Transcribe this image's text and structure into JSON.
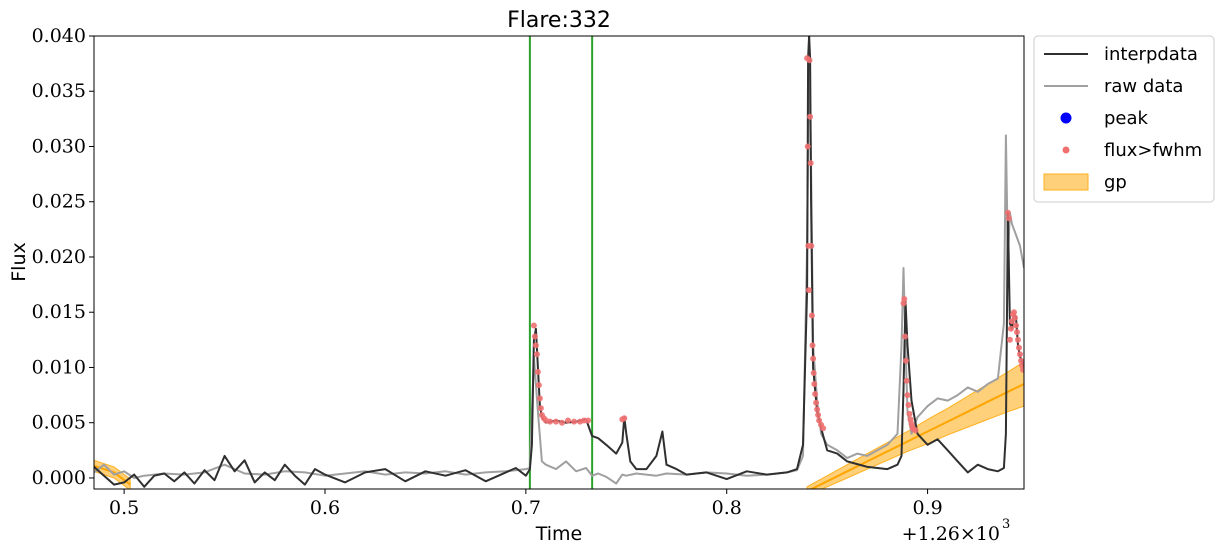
{
  "chart_data": {
    "type": "line",
    "title": "Flare:332",
    "xlabel": "Time",
    "ylabel": "Flux",
    "x_offset_label": "+1.26×10",
    "x_offset_exp": "3",
    "xlim": [
      0.485,
      0.948
    ],
    "ylim": [
      -0.001,
      0.04
    ],
    "xticks": [
      {
        "value": 0.5,
        "label": "0.5"
      },
      {
        "value": 0.6,
        "label": "0.6"
      },
      {
        "value": 0.7,
        "label": "0.7"
      },
      {
        "value": 0.8,
        "label": "0.8"
      },
      {
        "value": 0.9,
        "label": "0.9"
      }
    ],
    "yticks": [
      {
        "value": 0.0,
        "label": "0.000"
      },
      {
        "value": 0.005,
        "label": "0.005"
      },
      {
        "value": 0.01,
        "label": "0.010"
      },
      {
        "value": 0.015,
        "label": "0.015"
      },
      {
        "value": 0.02,
        "label": "0.020"
      },
      {
        "value": 0.025,
        "label": "0.025"
      },
      {
        "value": 0.03,
        "label": "0.030"
      },
      {
        "value": 0.035,
        "label": "0.035"
      },
      {
        "value": 0.04,
        "label": "0.040"
      }
    ],
    "vlines": [
      {
        "x": 0.702,
        "color": "#2ca02c"
      },
      {
        "x": 0.733,
        "color": "#2ca02c"
      }
    ],
    "legend": {
      "placement": "outside-upper-right",
      "entries": [
        {
          "label": "interpdata",
          "kind": "line",
          "color": "#303030"
        },
        {
          "label": "raw data",
          "kind": "line",
          "color": "#a0a0a0"
        },
        {
          "label": "peak",
          "kind": "dot",
          "color": "#0000ff"
        },
        {
          "label": "flux>fwhm",
          "kind": "dot",
          "color": "#f07070"
        },
        {
          "label": "gp",
          "kind": "band",
          "color": "#ffc04d"
        }
      ]
    },
    "series": [
      {
        "name": "raw data",
        "color": "#a0a0a0",
        "x": [
          0.485,
          0.49,
          0.495,
          0.5,
          0.505,
          0.51,
          0.52,
          0.53,
          0.54,
          0.55,
          0.56,
          0.57,
          0.58,
          0.59,
          0.6,
          0.61,
          0.62,
          0.63,
          0.64,
          0.65,
          0.66,
          0.67,
          0.68,
          0.69,
          0.7,
          0.702,
          0.704,
          0.706,
          0.708,
          0.71,
          0.715,
          0.72,
          0.725,
          0.73,
          0.733,
          0.736,
          0.74,
          0.745,
          0.748,
          0.75,
          0.755,
          0.76,
          0.765,
          0.77,
          0.78,
          0.79,
          0.8,
          0.81,
          0.82,
          0.83,
          0.835,
          0.838,
          0.84,
          0.841,
          0.842,
          0.843,
          0.845,
          0.847,
          0.85,
          0.855,
          0.86,
          0.865,
          0.87,
          0.875,
          0.88,
          0.885,
          0.887,
          0.888,
          0.889,
          0.89,
          0.892,
          0.895,
          0.9,
          0.905,
          0.91,
          0.915,
          0.92,
          0.925,
          0.93,
          0.935,
          0.938,
          0.939,
          0.94,
          0.941,
          0.942,
          0.944,
          0.946,
          0.948
        ],
        "y": [
          0.0005,
          0.0012,
          0.0003,
          0.0006,
          0.0,
          0.0002,
          0.0004,
          0.0003,
          0.0005,
          0.0012,
          0.0004,
          0.0003,
          0.0006,
          0.0005,
          0.0002,
          0.0004,
          0.0006,
          0.0003,
          0.0005,
          0.0004,
          0.0006,
          0.0003,
          0.0005,
          0.0006,
          0.0008,
          0.0009,
          0.011,
          0.006,
          0.0015,
          0.0012,
          0.0008,
          0.0015,
          0.0006,
          0.0009,
          0.0002,
          0.0004,
          0.0001,
          -0.0005,
          0.0003,
          0.0002,
          0.0004,
          0.0003,
          0.0002,
          0.0004,
          0.0003,
          0.0005,
          0.0004,
          0.0002,
          0.0003,
          0.0005,
          0.0007,
          0.002,
          0.021,
          0.04,
          0.028,
          0.012,
          0.007,
          0.004,
          0.003,
          0.0025,
          0.0018,
          0.0022,
          0.002,
          0.0025,
          0.003,
          0.004,
          0.012,
          0.019,
          0.012,
          0.006,
          0.004,
          0.0055,
          0.0065,
          0.0072,
          0.007,
          0.0075,
          0.0082,
          0.0078,
          0.0085,
          0.009,
          0.014,
          0.031,
          0.02,
          0.024,
          0.023,
          0.022,
          0.021,
          0.019
        ]
      },
      {
        "name": "interpdata",
        "color": "#303030",
        "x": [
          0.485,
          0.49,
          0.495,
          0.5,
          0.505,
          0.51,
          0.515,
          0.52,
          0.525,
          0.53,
          0.535,
          0.54,
          0.545,
          0.55,
          0.555,
          0.56,
          0.565,
          0.57,
          0.575,
          0.58,
          0.585,
          0.59,
          0.595,
          0.6,
          0.61,
          0.62,
          0.63,
          0.64,
          0.65,
          0.66,
          0.67,
          0.68,
          0.69,
          0.695,
          0.7,
          0.702,
          0.703,
          0.704,
          0.705,
          0.706,
          0.707,
          0.708,
          0.71,
          0.715,
          0.72,
          0.725,
          0.73,
          0.733,
          0.736,
          0.74,
          0.745,
          0.748,
          0.749,
          0.75,
          0.752,
          0.755,
          0.76,
          0.765,
          0.768,
          0.77,
          0.775,
          0.78,
          0.79,
          0.8,
          0.81,
          0.82,
          0.83,
          0.835,
          0.838,
          0.84,
          0.8405,
          0.841,
          0.8415,
          0.842,
          0.843,
          0.845,
          0.847,
          0.85,
          0.855,
          0.86,
          0.87,
          0.88,
          0.885,
          0.887,
          0.888,
          0.889,
          0.89,
          0.892,
          0.895,
          0.9,
          0.905,
          0.91,
          0.915,
          0.92,
          0.925,
          0.93,
          0.935,
          0.938,
          0.939,
          0.94,
          0.941,
          0.942,
          0.943,
          0.944,
          0.945,
          0.946,
          0.948
        ],
        "y": [
          0.001,
          0.0002,
          -0.0006,
          -0.0004,
          0.0003,
          -0.0008,
          0.0002,
          0.0004,
          -0.0003,
          0.0005,
          -0.0005,
          0.0007,
          -0.0002,
          0.002,
          0.0006,
          0.0016,
          -0.0004,
          0.0005,
          -0.0002,
          0.0012,
          0.0002,
          -0.0006,
          0.0008,
          0.0003,
          -0.0004,
          0.0005,
          0.0008,
          -0.0003,
          0.0006,
          0.0002,
          0.0007,
          -0.0003,
          0.0005,
          0.0009,
          0.0002,
          0.0008,
          0.003,
          0.0125,
          0.0135,
          0.01,
          0.0065,
          0.0055,
          0.005,
          0.0052,
          0.005,
          0.0051,
          0.0053,
          0.0038,
          0.0036,
          0.003,
          0.0022,
          0.0032,
          0.0055,
          0.004,
          0.0015,
          0.0008,
          0.0008,
          0.002,
          0.0042,
          0.0012,
          0.0008,
          0.0003,
          0.0005,
          -0.0001,
          0.0006,
          0.0003,
          0.0005,
          0.0008,
          0.003,
          0.017,
          0.038,
          0.04,
          0.038,
          0.025,
          0.01,
          0.006,
          0.0045,
          0.0025,
          0.0022,
          0.0015,
          0.001,
          0.0008,
          0.0012,
          0.002,
          0.008,
          0.016,
          0.012,
          0.007,
          0.004,
          0.003,
          0.0035,
          0.0025,
          0.0015,
          0.0005,
          0.0012,
          0.0008,
          0.0006,
          0.0009,
          0.004,
          0.024,
          0.014,
          0.0135,
          0.015,
          0.0145,
          0.012,
          0.011,
          0.01
        ]
      },
      {
        "name": "flux>fwhm",
        "color": "#f07070",
        "x": [
          0.704,
          0.7045,
          0.705,
          0.7055,
          0.706,
          0.7065,
          0.707,
          0.7075,
          0.708,
          0.709,
          0.71,
          0.712,
          0.715,
          0.718,
          0.721,
          0.724,
          0.727,
          0.729,
          0.731,
          0.748,
          0.749,
          0.84,
          0.8403,
          0.8406,
          0.8409,
          0.8412,
          0.8415,
          0.8418,
          0.8421,
          0.8424,
          0.8427,
          0.843,
          0.8433,
          0.8436,
          0.844,
          0.8445,
          0.845,
          0.8455,
          0.846,
          0.847,
          0.848,
          0.888,
          0.8884,
          0.8888,
          0.8892,
          0.8896,
          0.89,
          0.8905,
          0.891,
          0.8915,
          0.892,
          0.8925,
          0.893,
          0.894,
          0.94,
          0.9405,
          0.941,
          0.9415,
          0.942,
          0.9425,
          0.943,
          0.9435,
          0.944,
          0.9445,
          0.945,
          0.9455,
          0.946,
          0.9465,
          0.947,
          0.9475
        ],
        "y": [
          0.0138,
          0.0128,
          0.012,
          0.0112,
          0.0096,
          0.0084,
          0.0072,
          0.0063,
          0.0057,
          0.0054,
          0.0052,
          0.0051,
          0.0051,
          0.005,
          0.0052,
          0.0051,
          0.0051,
          0.0052,
          0.0052,
          0.0053,
          0.0054,
          0.038,
          0.03,
          0.021,
          0.017,
          0.0378,
          0.0327,
          0.0285,
          0.021,
          0.0147,
          0.012,
          0.0108,
          0.0095,
          0.0085,
          0.0076,
          0.0068,
          0.0062,
          0.0057,
          0.0052,
          0.0048,
          0.0045,
          0.0158,
          0.0162,
          0.0128,
          0.0106,
          0.0088,
          0.0075,
          0.0066,
          0.0058,
          0.0053,
          0.0049,
          0.0046,
          0.0044,
          0.0043,
          0.024,
          0.0235,
          0.0125,
          0.0135,
          0.0142,
          0.0148,
          0.015,
          0.0145,
          0.0138,
          0.0132,
          0.0125,
          0.0118,
          0.0112,
          0.0106,
          0.0102,
          0.0098
        ]
      },
      {
        "name": "gp",
        "color": "#ffa500",
        "segments": [
          {
            "x": [
              0.485,
              0.495,
              0.503
            ],
            "mean": [
              0.0011,
              0.0005,
              -0.0006
            ],
            "lower": [
              0.0006,
              0.0,
              -0.0011
            ],
            "upper": [
              0.0016,
              0.001,
              -0.0001
            ]
          },
          {
            "x": [
              0.84,
              0.85,
              0.86,
              0.87,
              0.88,
              0.89,
              0.9,
              0.91,
              0.92,
              0.93,
              0.94,
              0.948
            ],
            "mean": [
              -0.0012,
              -0.0003,
              0.0006,
              0.0015,
              0.0024,
              0.0033,
              0.0042,
              0.0051,
              0.006,
              0.0069,
              0.0078,
              0.0085
            ],
            "lower": [
              -0.0016,
              -0.0008,
              0.0,
              0.0008,
              0.0016,
              0.0024,
              0.0031,
              0.0039,
              0.0046,
              0.0053,
              0.006,
              0.0065
            ],
            "upper": [
              -0.0008,
              0.0002,
              0.0012,
              0.0022,
              0.0032,
              0.0042,
              0.0053,
              0.0063,
              0.0074,
              0.0085,
              0.0096,
              0.0105
            ]
          }
        ]
      }
    ]
  }
}
